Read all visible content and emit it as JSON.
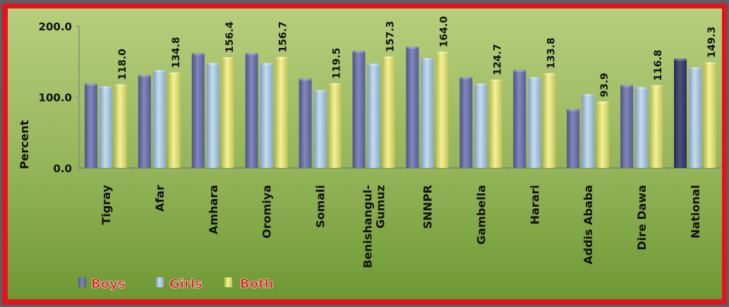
{
  "chart_data": {
    "type": "bar",
    "title": "",
    "xlabel": "",
    "ylabel": "Percent",
    "ylim": [
      0,
      200
    ],
    "yticks": [
      "0.0",
      "100.0",
      "200.0"
    ],
    "grid": false,
    "legend_position": "bottom-left",
    "categories": [
      "Tigray",
      "Afar",
      "Amhara",
      "Oromiya",
      "Somali",
      "Benishangul-\nGumuz",
      "SNNPR",
      "Gambella",
      "Harari",
      "Addis Ababa",
      "Dire Dawa",
      "National"
    ],
    "series": [
      {
        "name": "Boys",
        "values": [
          119,
          131,
          162,
          162,
          126,
          165,
          171,
          128,
          138,
          83,
          117,
          154
        ]
      },
      {
        "name": "Girls",
        "values": [
          115,
          138,
          148,
          148,
          110,
          147,
          155,
          119,
          128,
          104,
          114,
          142
        ]
      },
      {
        "name": "Both",
        "values": [
          118.0,
          134.8,
          156.4,
          156.7,
          119.5,
          157.3,
          164.0,
          124.7,
          133.8,
          93.9,
          116.8,
          149.3
        ]
      }
    ],
    "data_labels": [
      "118.0",
      "134.8",
      "156.4",
      "156.7",
      "119.5",
      "157.3",
      "164.0",
      "124.7",
      "133.8",
      "93.9",
      "116.8",
      "149.3"
    ],
    "colors": {
      "Boys": "#6b70a8",
      "Girls": "#a9c8e2",
      "Both": "#e6e678",
      "National_Boys": "#3c4268",
      "panel_top": "#b6cd7c",
      "panel_bottom": "#6f9a35",
      "frame_red": "#e2141d",
      "legend_text": "#e01a1a"
    }
  }
}
